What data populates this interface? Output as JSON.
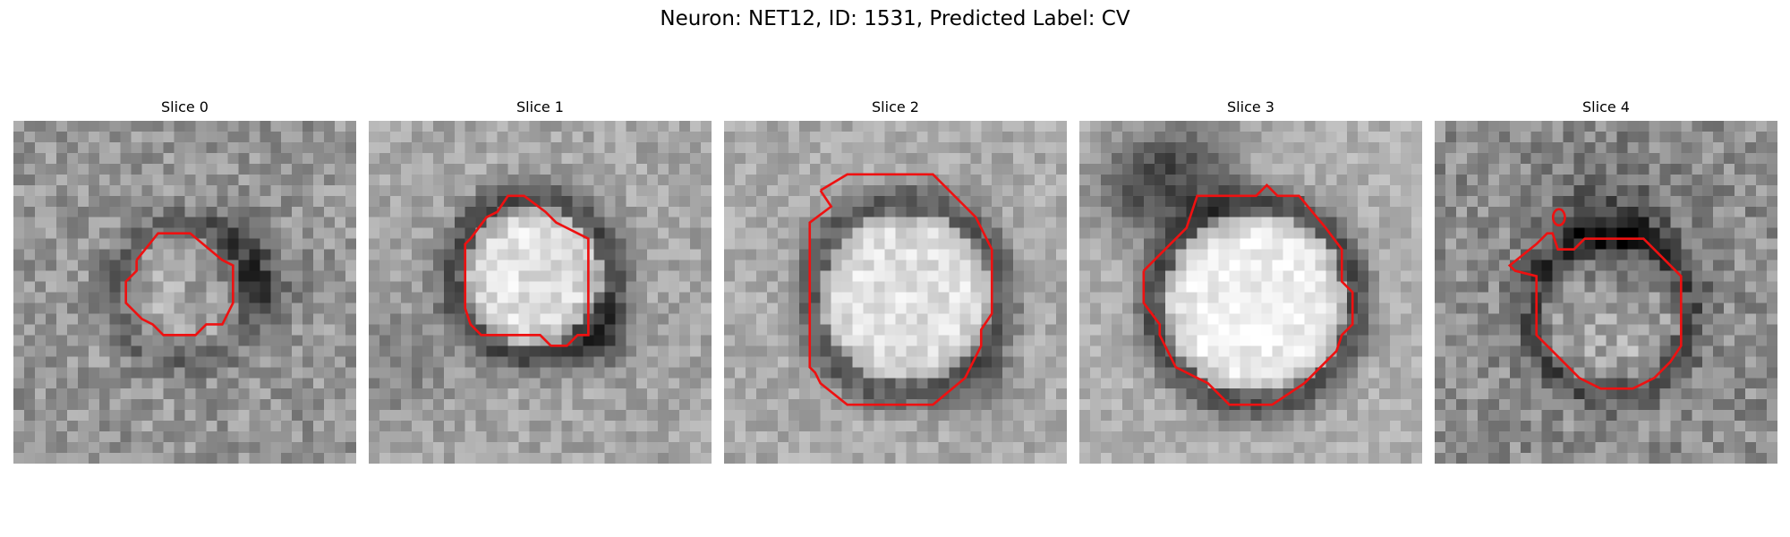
{
  "figure": {
    "title": "Neuron: NET12, ID: 1531, Predicted Label: CV"
  },
  "panels": [
    {
      "title": "Slice 0"
    },
    {
      "title": "Slice 1"
    },
    {
      "title": "Slice 2"
    },
    {
      "title": "Slice 3"
    },
    {
      "title": "Slice 4"
    }
  ],
  "style": {
    "contour_color": "#ee1111",
    "colormap": "gray"
  }
}
